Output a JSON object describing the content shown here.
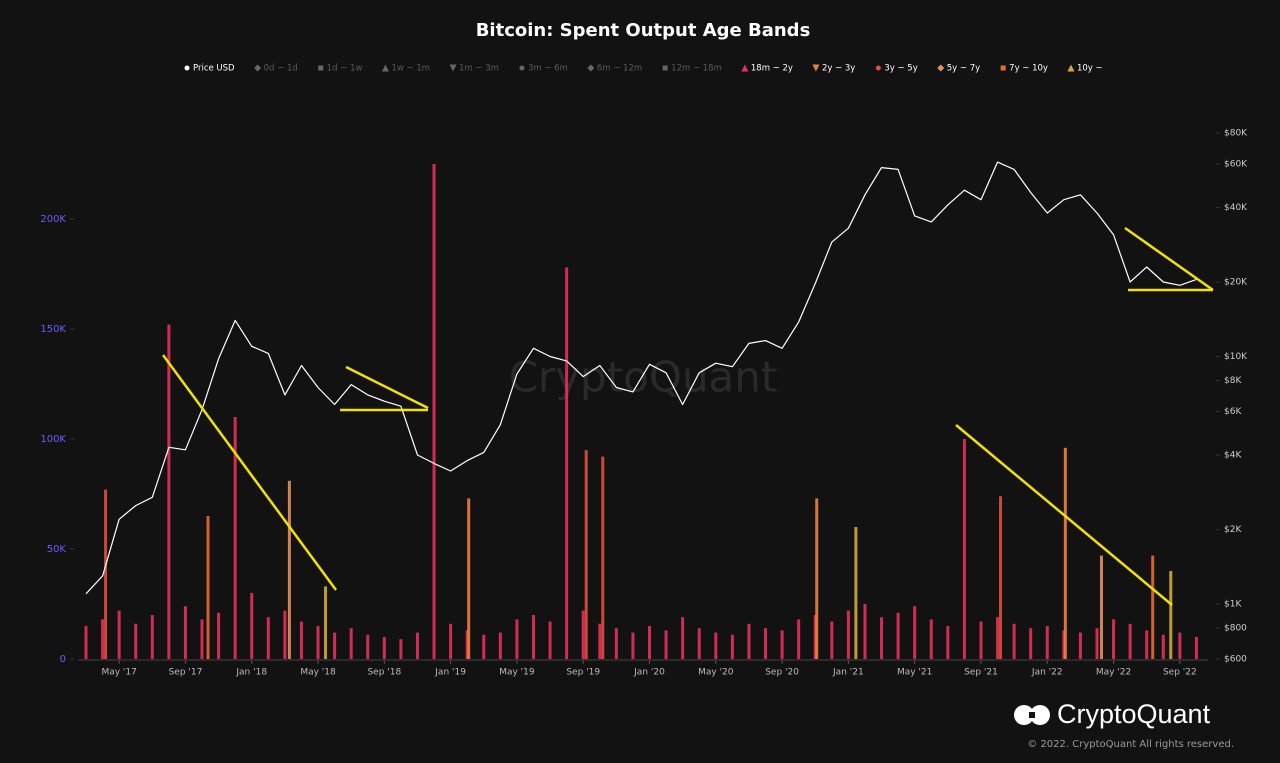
{
  "chart_data": {
    "type": "bar",
    "title": "Bitcoin: Spent Output Age Bands",
    "watermark": "CryptoQuant",
    "logo_text": "CryptoQuant",
    "copyright": "© 2022. CryptoQuant All rights reserved.",
    "xlim": [
      "2017-03",
      "2022-11"
    ],
    "xticks": [
      {
        "value": "2017-05",
        "label": "May '17"
      },
      {
        "value": "2017-09",
        "label": "Sep '17"
      },
      {
        "value": "2018-01",
        "label": "Jan '18"
      },
      {
        "value": "2018-05",
        "label": "May '18"
      },
      {
        "value": "2018-09",
        "label": "Sep '18"
      },
      {
        "value": "2019-01",
        "label": "Jan '19"
      },
      {
        "value": "2019-05",
        "label": "May '19"
      },
      {
        "value": "2019-09",
        "label": "Sep '19"
      },
      {
        "value": "2020-01",
        "label": "Jan '20"
      },
      {
        "value": "2020-05",
        "label": "May '20"
      },
      {
        "value": "2020-09",
        "label": "Sep '20"
      },
      {
        "value": "2021-01",
        "label": "Jan '21"
      },
      {
        "value": "2021-05",
        "label": "May '21"
      },
      {
        "value": "2021-09",
        "label": "Sep '21"
      },
      {
        "value": "2022-01",
        "label": "Jan '22"
      },
      {
        "value": "2022-05",
        "label": "May '22"
      },
      {
        "value": "2022-09",
        "label": "Sep '22"
      }
    ],
    "ylim": [
      0,
      250000
    ],
    "yticks": [
      0,
      {
        "value": 50000,
        "label": "50K"
      },
      {
        "value": 100000,
        "label": "100K"
      },
      {
        "value": 150000,
        "label": "150K"
      },
      {
        "value": 200000,
        "label": "200K"
      }
    ],
    "y2lim": [
      600,
      100000
    ],
    "y2_log": true,
    "y2ticks": [
      {
        "value": 600,
        "label": "$600"
      },
      {
        "value": 800,
        "label": "$800"
      },
      {
        "value": 1000,
        "label": "$1K"
      },
      {
        "value": 2000,
        "label": "$2K"
      },
      {
        "value": 4000,
        "label": "$4K"
      },
      {
        "value": 6000,
        "label": "$6K"
      },
      {
        "value": 8000,
        "label": "$8K"
      },
      {
        "value": 10000,
        "label": "$10K"
      },
      {
        "value": 20000,
        "label": "$20K"
      },
      {
        "value": 40000,
        "label": "$40K"
      },
      {
        "value": 60000,
        "label": "$60K"
      },
      {
        "value": 80000,
        "label": "$80K"
      }
    ],
    "legend": [
      {
        "name": "Price USD",
        "marker": "dot",
        "color": "#ffffff",
        "active": true
      },
      {
        "name": "0d ~ 1d",
        "marker": "diamond",
        "color": "#666666",
        "active": false
      },
      {
        "name": "1d ~ 1w",
        "marker": "square",
        "color": "#666666",
        "active": false
      },
      {
        "name": "1w ~ 1m",
        "marker": "triangle",
        "color": "#666666",
        "active": false
      },
      {
        "name": "1m ~ 3m",
        "marker": "triangle-down",
        "color": "#666666",
        "active": false
      },
      {
        "name": "3m ~ 6m",
        "marker": "dot",
        "color": "#666666",
        "active": false
      },
      {
        "name": "6m ~ 12m",
        "marker": "diamond",
        "color": "#666666",
        "active": false
      },
      {
        "name": "12m ~ 18m",
        "marker": "square",
        "color": "#666666",
        "active": false
      },
      {
        "name": "18m ~ 2y",
        "marker": "triangle",
        "color": "#e8305a",
        "active": true
      },
      {
        "name": "2y ~ 3y",
        "marker": "triangle-down",
        "color": "#f0823c",
        "active": true
      },
      {
        "name": "3y ~ 5y",
        "marker": "dot",
        "color": "#e0503c",
        "active": true
      },
      {
        "name": "5y ~ 7y",
        "marker": "diamond",
        "color": "#e8905a",
        "active": true
      },
      {
        "name": "7y ~ 10y",
        "marker": "square",
        "color": "#e86a30",
        "active": true
      },
      {
        "name": "10y ~",
        "marker": "triangle",
        "color": "#d4aa3c",
        "active": true
      }
    ],
    "series": [
      {
        "name": "Price USD",
        "type": "line",
        "axis": "y2",
        "color": "#ffffff",
        "x": [
          "2017-03",
          "2017-04",
          "2017-05",
          "2017-06",
          "2017-07",
          "2017-08",
          "2017-09",
          "2017-10",
          "2017-11",
          "2017-12",
          "2018-01",
          "2018-02",
          "2018-03",
          "2018-04",
          "2018-05",
          "2018-06",
          "2018-07",
          "2018-08",
          "2018-09",
          "2018-10",
          "2018-11",
          "2018-12",
          "2019-01",
          "2019-02",
          "2019-03",
          "2019-04",
          "2019-05",
          "2019-06",
          "2019-07",
          "2019-08",
          "2019-09",
          "2019-10",
          "2019-11",
          "2019-12",
          "2020-01",
          "2020-02",
          "2020-03",
          "2020-04",
          "2020-05",
          "2020-06",
          "2020-07",
          "2020-08",
          "2020-09",
          "2020-10",
          "2020-11",
          "2020-12",
          "2021-01",
          "2021-02",
          "2021-03",
          "2021-04",
          "2021-05",
          "2021-06",
          "2021-07",
          "2021-08",
          "2021-09",
          "2021-10",
          "2021-11",
          "2021-12",
          "2022-01",
          "2022-02",
          "2022-03",
          "2022-04",
          "2022-05",
          "2022-06",
          "2022-07",
          "2022-08",
          "2022-09",
          "2022-10"
        ],
        "values": [
          1100,
          1300,
          2200,
          2500,
          2700,
          4300,
          4200,
          6100,
          9800,
          14000,
          11000,
          10300,
          7000,
          9200,
          7500,
          6400,
          7700,
          7000,
          6600,
          6300,
          4000,
          3700,
          3450,
          3800,
          4100,
          5300,
          8500,
          10800,
          10000,
          9600,
          8300,
          9200,
          7500,
          7200,
          9300,
          8600,
          6400,
          8600,
          9400,
          9100,
          11300,
          11600,
          10800,
          13800,
          19700,
          29000,
          33000,
          45000,
          58000,
          57000,
          37000,
          35000,
          41000,
          47000,
          43000,
          61000,
          57000,
          46000,
          38000,
          43000,
          45000,
          38000,
          31000,
          20000,
          23000,
          20000,
          19400,
          20500
        ]
      },
      {
        "name": "18m ~ 2y",
        "type": "bar",
        "color": "#e8305a",
        "x": [
          "2017-03",
          "2017-04",
          "2017-05",
          "2017-06",
          "2017-07",
          "2017-08",
          "2017-09",
          "2017-10",
          "2017-11",
          "2017-12",
          "2018-01",
          "2018-02",
          "2018-03",
          "2018-04",
          "2018-05",
          "2018-06",
          "2018-07",
          "2018-08",
          "2018-09",
          "2018-10",
          "2018-11",
          "2018-12",
          "2019-01",
          "2019-02",
          "2019-03",
          "2019-04",
          "2019-05",
          "2019-06",
          "2019-07",
          "2019-08",
          "2019-09",
          "2019-10",
          "2019-11",
          "2019-12",
          "2020-01",
          "2020-02",
          "2020-03",
          "2020-04",
          "2020-05",
          "2020-06",
          "2020-07",
          "2020-08",
          "2020-09",
          "2020-10",
          "2020-11",
          "2020-12",
          "2021-01",
          "2021-02",
          "2021-03",
          "2021-04",
          "2021-05",
          "2021-06",
          "2021-07",
          "2021-08",
          "2021-09",
          "2021-10",
          "2021-11",
          "2021-12",
          "2022-01",
          "2022-02",
          "2022-03",
          "2022-04",
          "2022-05",
          "2022-06",
          "2022-07",
          "2022-08",
          "2022-09",
          "2022-10"
        ],
        "values": [
          15000,
          18000,
          22000,
          16000,
          20000,
          152000,
          24000,
          18000,
          21000,
          110000,
          30000,
          19000,
          22000,
          17000,
          15000,
          12000,
          14000,
          11000,
          10000,
          9000,
          12000,
          225000,
          16000,
          13000,
          11000,
          12000,
          18000,
          20000,
          17000,
          178000,
          22000,
          16000,
          14000,
          12000,
          15000,
          13000,
          19000,
          14000,
          12000,
          11000,
          16000,
          14000,
          13000,
          18000,
          20000,
          17000,
          22000,
          25000,
          19000,
          21000,
          24000,
          18000,
          15000,
          100000,
          17000,
          19000,
          16000,
          14000,
          15000,
          13000,
          12000,
          14000,
          18000,
          16000,
          13000,
          11000,
          12000,
          10000
        ]
      },
      {
        "name": "2y ~ 3y",
        "type": "bar",
        "color": "#f0823c",
        "x": [
          "2019-02",
          "2020-11",
          "2022-02"
        ],
        "values": [
          73000,
          73000,
          96000
        ]
      },
      {
        "name": "3y ~ 5y",
        "type": "bar",
        "color": "#e0503c",
        "x": [
          "2017-04",
          "2019-09",
          "2019-10",
          "2021-10"
        ],
        "values": [
          77000,
          95000,
          92000,
          74000
        ]
      },
      {
        "name": "5y ~ 7y",
        "type": "bar",
        "color": "#e8905a",
        "x": [
          "2018-03",
          "2022-04"
        ],
        "values": [
          81000,
          47000
        ]
      },
      {
        "name": "7y ~ 10y",
        "type": "bar",
        "color": "#e86a30",
        "x": [
          "2017-10",
          "2022-07"
        ],
        "values": [
          65000,
          47000
        ]
      },
      {
        "name": "10y ~",
        "type": "bar",
        "color": "#d4aa3c",
        "x": [
          "2018-05",
          "2021-01",
          "2022-08"
        ],
        "values": [
          33000,
          60000,
          40000
        ]
      }
    ]
  }
}
